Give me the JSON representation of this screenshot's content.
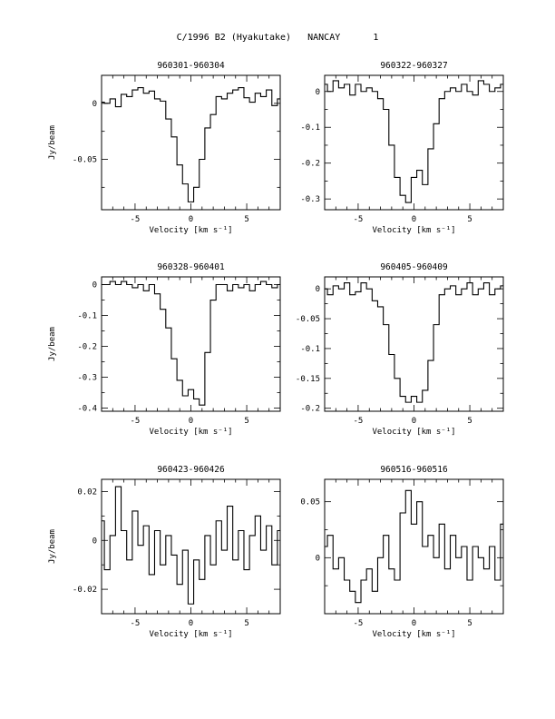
{
  "header": {
    "object": "C/1996 B2 (Hyakutake)",
    "station": "NANCAY",
    "page": "1"
  },
  "chart_data": [
    {
      "type": "line",
      "style": "step",
      "title": "960301-960304",
      "xlabel": "Velocity [km s⁻¹]",
      "ylabel": "Jy/beam",
      "xlim": [
        -8,
        8
      ],
      "ylim": [
        -0.095,
        0.025
      ],
      "xticks": [
        -5,
        0,
        5
      ],
      "xtick_labels": [
        "-5",
        "0",
        "5"
      ],
      "yticks": [
        0,
        -0.05
      ],
      "ytick_labels": [
        "0",
        "-0.05"
      ],
      "x": [
        -8,
        -7.5,
        -7,
        -6.5,
        -6,
        -5.5,
        -5,
        -4.5,
        -4,
        -3.5,
        -3,
        -2.5,
        -2,
        -1.5,
        -1,
        -0.5,
        0,
        0.5,
        1,
        1.5,
        2,
        2.5,
        3,
        3.5,
        4,
        4.5,
        5,
        5.5,
        6,
        6.5,
        7,
        7.5,
        8
      ],
      "y": [
        0.001,
        0.0,
        0.004,
        -0.003,
        0.008,
        0.006,
        0.012,
        0.014,
        0.009,
        0.011,
        0.004,
        0.002,
        -0.014,
        -0.03,
        -0.055,
        -0.072,
        -0.088,
        -0.075,
        -0.05,
        -0.022,
        -0.01,
        0.006,
        0.004,
        0.009,
        0.012,
        0.014,
        0.005,
        0.001,
        0.009,
        0.006,
        0.012,
        -0.002,
        0.004
      ]
    },
    {
      "type": "line",
      "style": "step",
      "title": "960322-960327",
      "xlabel": "Velocity [km s⁻¹]",
      "ylabel": "",
      "xlim": [
        -8,
        8
      ],
      "ylim": [
        -0.33,
        0.045
      ],
      "xticks": [
        -5,
        0,
        5
      ],
      "xtick_labels": [
        "-5",
        "0",
        "5"
      ],
      "yticks": [
        0,
        -0.1,
        -0.2,
        -0.3
      ],
      "ytick_labels": [
        "0",
        "-0.1",
        "-0.2",
        "-0.3"
      ],
      "x": [
        -8,
        -7.5,
        -7,
        -6.5,
        -6,
        -5.5,
        -5,
        -4.5,
        -4,
        -3.5,
        -3,
        -2.5,
        -2,
        -1.5,
        -1,
        -0.5,
        0,
        0.5,
        1,
        1.5,
        2,
        2.5,
        3,
        3.5,
        4,
        4.5,
        5,
        5.5,
        6,
        6.5,
        7,
        7.5,
        8
      ],
      "y": [
        0.02,
        0.0,
        0.03,
        0.01,
        0.02,
        -0.01,
        0.02,
        0.0,
        0.01,
        0.0,
        -0.02,
        -0.05,
        -0.15,
        -0.24,
        -0.29,
        -0.31,
        -0.24,
        -0.22,
        -0.26,
        -0.16,
        -0.09,
        -0.02,
        0.0,
        0.01,
        0.0,
        0.02,
        0.0,
        -0.01,
        0.03,
        0.02,
        0.0,
        0.01,
        0.02
      ]
    },
    {
      "type": "line",
      "style": "step",
      "title": "960328-960401",
      "xlabel": "Velocity [km s⁻¹]",
      "ylabel": "Jy/beam",
      "xlim": [
        -8,
        8
      ],
      "ylim": [
        -0.41,
        0.025
      ],
      "xticks": [
        -5,
        0,
        5
      ],
      "xtick_labels": [
        "-5",
        "0",
        "5"
      ],
      "yticks": [
        0,
        -0.1,
        -0.2,
        -0.3,
        -0.4
      ],
      "ytick_labels": [
        "0",
        "-0.1",
        "-0.2",
        "-0.3",
        "-0.4"
      ],
      "x": [
        -8,
        -7.5,
        -7,
        -6.5,
        -6,
        -5.5,
        -5,
        -4.5,
        -4,
        -3.5,
        -3,
        -2.5,
        -2,
        -1.5,
        -1,
        -0.5,
        0,
        0.5,
        1,
        1.5,
        2,
        2.5,
        3,
        3.5,
        4,
        4.5,
        5,
        5.5,
        6,
        6.5,
        7,
        7.5,
        8
      ],
      "y": [
        0.0,
        0.0,
        0.01,
        0.0,
        0.01,
        0.0,
        -0.01,
        0.0,
        -0.02,
        0.0,
        -0.03,
        -0.08,
        -0.14,
        -0.24,
        -0.31,
        -0.36,
        -0.34,
        -0.37,
        -0.39,
        -0.22,
        -0.05,
        0.0,
        0.0,
        -0.02,
        0.0,
        -0.01,
        0.0,
        -0.02,
        0.0,
        0.01,
        0.0,
        -0.01,
        0.0
      ]
    },
    {
      "type": "line",
      "style": "step",
      "title": "960405-960409",
      "xlabel": "Velocity [km s⁻¹]",
      "ylabel": "",
      "xlim": [
        -8,
        8
      ],
      "ylim": [
        -0.205,
        0.02
      ],
      "xticks": [
        -5,
        0,
        5
      ],
      "xtick_labels": [
        "-5",
        "0",
        "5"
      ],
      "yticks": [
        0,
        -0.05,
        -0.1,
        -0.15,
        -0.2
      ],
      "ytick_labels": [
        "0",
        "-0.05",
        "-0.1",
        "-0.15",
        "-0.2"
      ],
      "x": [
        -8,
        -7.5,
        -7,
        -6.5,
        -6,
        -5.5,
        -5,
        -4.5,
        -4,
        -3.5,
        -3,
        -2.5,
        -2,
        -1.5,
        -1,
        -0.5,
        0,
        0.5,
        1,
        1.5,
        2,
        2.5,
        3,
        3.5,
        4,
        4.5,
        5,
        5.5,
        6,
        6.5,
        7,
        7.5,
        8
      ],
      "y": [
        0.0,
        -0.01,
        0.005,
        0.0,
        0.01,
        -0.01,
        -0.005,
        0.01,
        0.0,
        -0.02,
        -0.03,
        -0.06,
        -0.11,
        -0.15,
        -0.18,
        -0.19,
        -0.18,
        -0.19,
        -0.17,
        -0.12,
        -0.06,
        -0.01,
        0.0,
        0.005,
        -0.01,
        0.0,
        0.01,
        -0.01,
        0.0,
        0.01,
        -0.01,
        0.0,
        0.005
      ]
    },
    {
      "type": "line",
      "style": "step",
      "title": "960423-960426",
      "xlabel": "Velocity [km s⁻¹]",
      "ylabel": "Jy/beam",
      "xlim": [
        -8,
        8
      ],
      "ylim": [
        -0.03,
        0.025
      ],
      "xticks": [
        -5,
        0,
        5
      ],
      "xtick_labels": [
        "-5",
        "0",
        "5"
      ],
      "yticks": [
        0.02,
        0,
        -0.02
      ],
      "ytick_labels": [
        "0.02",
        "0",
        "-0.02"
      ],
      "x": [
        -8,
        -7.5,
        -7,
        -6.5,
        -6,
        -5.5,
        -5,
        -4.5,
        -4,
        -3.5,
        -3,
        -2.5,
        -2,
        -1.5,
        -1,
        -0.5,
        0,
        0.5,
        1,
        1.5,
        2,
        2.5,
        3,
        3.5,
        4,
        4.5,
        5,
        5.5,
        6,
        6.5,
        7,
        7.5,
        8
      ],
      "y": [
        0.008,
        -0.012,
        0.002,
        0.022,
        0.004,
        -0.008,
        0.012,
        -0.002,
        0.006,
        -0.014,
        0.004,
        -0.01,
        0.002,
        -0.006,
        -0.018,
        -0.004,
        -0.026,
        -0.008,
        -0.016,
        0.002,
        -0.01,
        0.008,
        -0.004,
        0.014,
        -0.008,
        0.004,
        -0.012,
        0.002,
        0.01,
        -0.004,
        0.006,
        -0.01,
        0.004
      ]
    },
    {
      "type": "line",
      "style": "step",
      "title": "960516-960516",
      "xlabel": "Velocity [km s⁻¹]",
      "ylabel": "",
      "xlim": [
        -8,
        8
      ],
      "ylim": [
        -0.05,
        0.07
      ],
      "xticks": [
        -5,
        0,
        5
      ],
      "xtick_labels": [
        "-5",
        "0",
        "5"
      ],
      "yticks": [
        0.05,
        0
      ],
      "ytick_labels": [
        "0.05",
        "0"
      ],
      "x": [
        -8,
        -7.5,
        -7,
        -6.5,
        -6,
        -5.5,
        -5,
        -4.5,
        -4,
        -3.5,
        -3,
        -2.5,
        -2,
        -1.5,
        -1,
        -0.5,
        0,
        0.5,
        1,
        1.5,
        2,
        2.5,
        3,
        3.5,
        4,
        4.5,
        5,
        5.5,
        6,
        6.5,
        7,
        7.5,
        8
      ],
      "y": [
        0.01,
        0.02,
        -0.01,
        0.0,
        -0.02,
        -0.03,
        -0.04,
        -0.02,
        -0.01,
        -0.03,
        0.0,
        0.02,
        -0.01,
        -0.02,
        0.04,
        0.06,
        0.03,
        0.05,
        0.01,
        0.02,
        0.0,
        0.03,
        -0.01,
        0.02,
        0.0,
        0.01,
        -0.02,
        0.01,
        0.0,
        -0.01,
        0.01,
        -0.02,
        0.03
      ]
    }
  ]
}
